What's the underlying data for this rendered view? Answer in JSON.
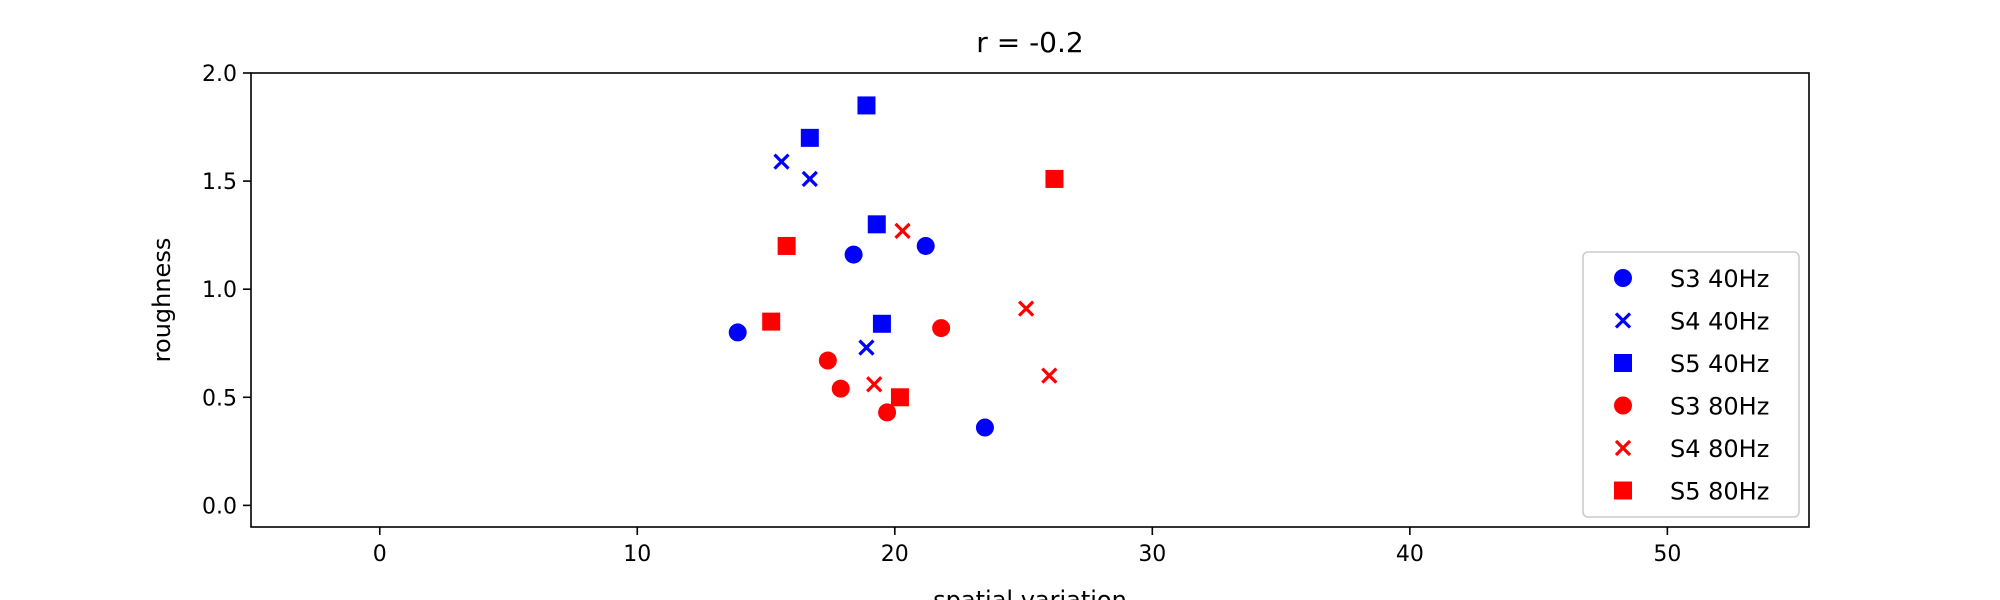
{
  "chart_data": {
    "type": "scatter",
    "title": "r = -0.2",
    "xlabel": "spatial variation",
    "ylabel": "roughness",
    "xlim": [
      -5,
      55.5
    ],
    "ylim": [
      -0.1,
      2.0
    ],
    "xticks": [
      0,
      10,
      20,
      30,
      40,
      50
    ],
    "yticks": [
      0.0,
      0.5,
      1.0,
      1.5,
      2.0
    ],
    "ytick_labels": [
      "0.0",
      "0.5",
      "1.0",
      "1.5",
      "2.0"
    ],
    "grid": false,
    "legend_position": "lower-right",
    "series": [
      {
        "name": "S3 40Hz",
        "marker": "circle",
        "color": "#0000ff",
        "points": [
          [
            13.9,
            0.8
          ],
          [
            18.4,
            1.16
          ],
          [
            21.2,
            1.2
          ],
          [
            23.5,
            0.36
          ]
        ]
      },
      {
        "name": "S4 40Hz",
        "marker": "x",
        "color": "#0000ff",
        "points": [
          [
            15.6,
            1.59
          ],
          [
            16.7,
            1.51
          ],
          [
            18.9,
            0.73
          ]
        ]
      },
      {
        "name": "S5 40Hz",
        "marker": "square",
        "color": "#0000ff",
        "points": [
          [
            16.7,
            1.7
          ],
          [
            18.9,
            1.85
          ],
          [
            19.3,
            1.3
          ],
          [
            19.5,
            0.84
          ]
        ]
      },
      {
        "name": "S3 80Hz",
        "marker": "circle",
        "color": "#ff0000",
        "points": [
          [
            17.4,
            0.67
          ],
          [
            17.9,
            0.54
          ],
          [
            19.7,
            0.43
          ],
          [
            21.8,
            0.82
          ]
        ]
      },
      {
        "name": "S4 80Hz",
        "marker": "x",
        "color": "#ff0000",
        "points": [
          [
            19.2,
            0.56
          ],
          [
            20.3,
            1.27
          ],
          [
            25.1,
            0.91
          ],
          [
            26.0,
            0.6
          ]
        ]
      },
      {
        "name": "S5 80Hz",
        "marker": "square",
        "color": "#ff0000",
        "points": [
          [
            15.2,
            0.85
          ],
          [
            15.8,
            1.2
          ],
          [
            20.2,
            0.5
          ],
          [
            26.2,
            1.51
          ]
        ]
      }
    ]
  }
}
